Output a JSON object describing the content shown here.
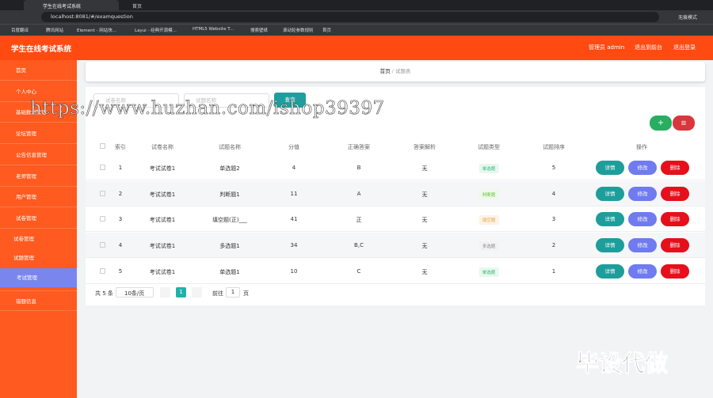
{
  "browser": {
    "tabs": [
      "学生在线考试系统",
      "首页"
    ],
    "address": "localhost:8081/#/examquestion",
    "bookmarks": [
      "百度翻译",
      "腾讯网站",
      "Element - 网站快...",
      "Layui - 经典开源模...",
      "HTML5 Website T...",
      "搜索壁纸",
      "滚动轮参数规则",
      "首页"
    ],
    "profile": "无痕模式"
  },
  "header": {
    "title": "学生在线考试系统",
    "user": "管理员 admin",
    "links": [
      "退出到前台",
      "退出登录"
    ]
  },
  "sidebar": {
    "items": [
      "首页",
      "个人中心",
      "基础数据管理",
      "论坛管理",
      "公告信息管理",
      "老师管理",
      "用户管理",
      "试卷管理"
    ],
    "submenu": [
      "试卷管理",
      "试题管理",
      "考试管理"
    ],
    "after": [
      "错题信息"
    ],
    "active": "考试管理"
  },
  "breadcrumb": [
    "首页",
    "试题表"
  ],
  "search": {
    "placeholders": [
      "试卷名称",
      "试题名称"
    ],
    "button": "查询"
  },
  "table": {
    "columns": [
      "索引",
      "试卷名称",
      "试题名称",
      "分值",
      "正确答案",
      "答案解析",
      "试题类型",
      "试题排序",
      "操作"
    ],
    "rows": [
      [
        "1",
        "考试试卷1",
        "单选题2",
        "4",
        "B",
        "无",
        "单选题",
        "5"
      ],
      [
        "2",
        "考试试卷1",
        "判断题1",
        "11",
        "A",
        "无",
        "判断题",
        "4"
      ],
      [
        "3",
        "考试试卷1",
        "填空题(正)___",
        "41",
        "正",
        "无",
        "填空题",
        "3"
      ],
      [
        "4",
        "考试试卷1",
        "多选题1",
        "34",
        "B,C",
        "无",
        "多选题",
        "2"
      ],
      [
        "5",
        "考试试卷1",
        "单选题1",
        "10",
        "C",
        "无",
        "单选题",
        "1"
      ]
    ],
    "actions": [
      "详情",
      "修改",
      "删除"
    ]
  },
  "pagination": {
    "total": "共 5 条",
    "size": "10条/页",
    "page": "1",
    "goto": "前往",
    "input": "1",
    "unit": "页"
  },
  "watermark": "https://www.huzhan.com/ishop39397",
  "corner": "毕设代做"
}
